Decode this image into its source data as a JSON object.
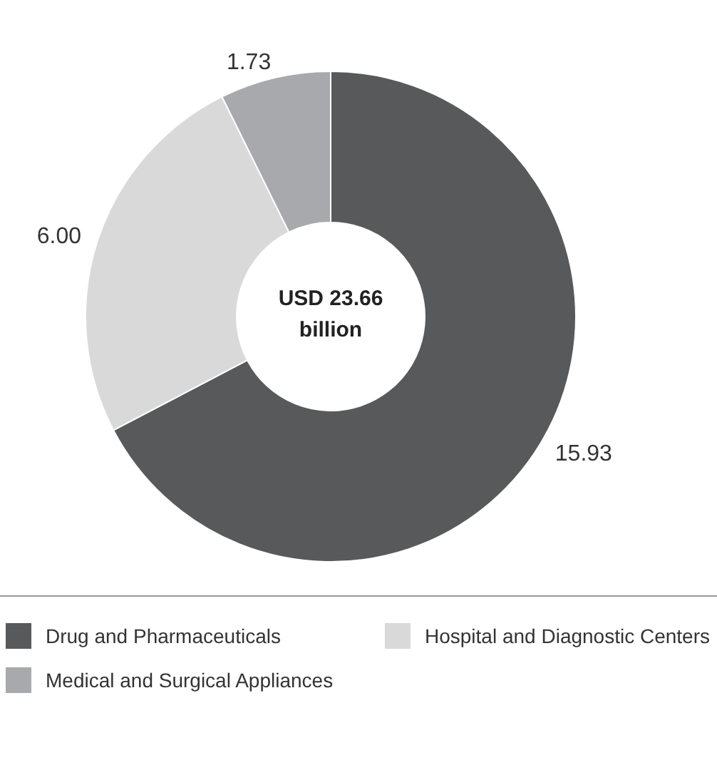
{
  "chart_data": {
    "type": "donut",
    "categories": [
      "Drug and Pharmaceuticals",
      "Hospital and Diagnostic Centers",
      "Medical and Surgical Appliances"
    ],
    "values": [
      15.93,
      6.0,
      1.73
    ],
    "colors": [
      "#58595b",
      "#d9d9d9",
      "#a7a9ac"
    ],
    "value_labels": [
      "15.93",
      "6.00",
      "1.73"
    ],
    "annotations": [
      "USD 23.66 billion"
    ],
    "legend": "bottom"
  }
}
